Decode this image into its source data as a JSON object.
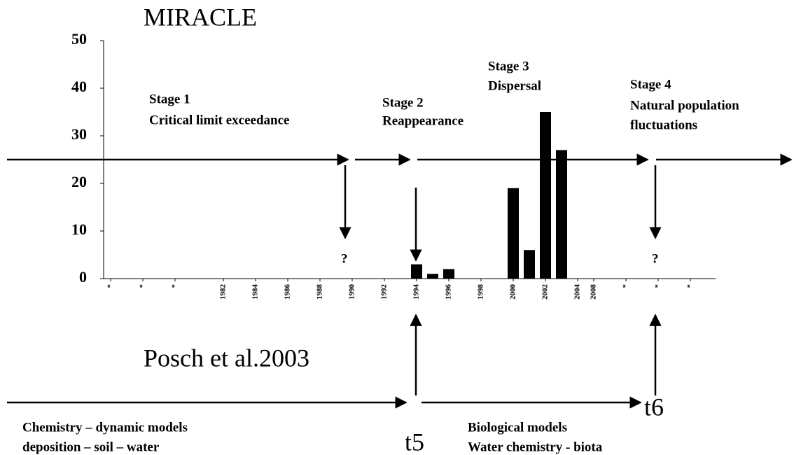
{
  "chart_data": {
    "type": "bar",
    "title": "MIRACLE",
    "categories": [
      "*",
      null,
      "*",
      null,
      "*",
      null,
      null,
      "1982",
      null,
      "1984",
      null,
      "1986",
      null,
      "1988",
      null,
      "1990",
      null,
      "1992",
      null,
      "1994",
      null,
      "1996",
      null,
      "1998",
      null,
      "2000",
      null,
      "2002",
      null,
      "2004",
      "2008",
      null,
      "*",
      null,
      "*",
      null,
      "*",
      null
    ],
    "values": [
      null,
      null,
      null,
      null,
      null,
      null,
      null,
      null,
      null,
      null,
      null,
      null,
      null,
      null,
      null,
      null,
      null,
      null,
      null,
      3,
      1,
      2,
      null,
      null,
      null,
      19,
      6,
      35,
      27,
      null,
      null,
      null,
      null,
      null,
      null,
      null,
      null,
      null
    ],
    "color": "#000000",
    "ylim": [
      0,
      50
    ],
    "yticks": [
      0,
      10,
      20,
      30,
      40,
      50
    ],
    "annotations": [
      "Stage 1",
      "Critical limit exceedance",
      "Stage 2",
      "Reappearance",
      "Stage 3",
      "Dispersal",
      "Stage 4",
      "Natural population",
      "fluctuations",
      "?",
      "?",
      "Posch et al.2003",
      "t5",
      "t6",
      "Chemistry – dynamic models",
      "deposition – soil – water",
      "Biological models",
      "Water chemistry - biota"
    ]
  }
}
